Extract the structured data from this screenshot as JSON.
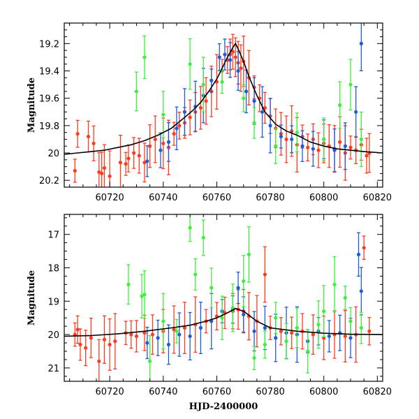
{
  "colors": {
    "red": "#ff3b1f",
    "blue": "#1e5bd6",
    "green": "#3cf03c",
    "fit": "#000000",
    "frame": "#000000"
  },
  "chart_data": [
    {
      "type": "scatter",
      "title": "",
      "xlabel": "",
      "ylabel": "Magnitude",
      "xlim": [
        60703,
        60822
      ],
      "ylim": [
        20.25,
        19.05
      ],
      "y_inverted": true,
      "x_ticks": [
        "60720",
        "60740",
        "60760",
        "60780",
        "60800",
        "60820"
      ],
      "y_ticks": [
        "19.2",
        "19.4",
        "19.6",
        "19.8",
        "20",
        "20.2"
      ],
      "grid": false,
      "series": [
        {
          "color": "red",
          "marker": "circle with error bar",
          "points": [
            [
              60707,
              20.13
            ],
            [
              60708,
              19.86
            ],
            [
              60712,
              19.88
            ],
            [
              60714,
              19.93
            ],
            [
              60716,
              20.14
            ],
            [
              60717,
              20.15
            ],
            [
              60718,
              20.11
            ],
            [
              60720,
              20.17
            ],
            [
              60724,
              20.07
            ],
            [
              60726,
              20.08
            ],
            [
              60727,
              20.04
            ],
            [
              60729,
              20.0
            ],
            [
              60731,
              20.02
            ],
            [
              60733,
              20.07
            ],
            [
              60735,
              19.95
            ],
            [
              60737,
              19.9
            ],
            [
              60740,
              19.93
            ],
            [
              60742,
              19.96
            ],
            [
              60744,
              19.86
            ],
            [
              60746,
              19.8
            ],
            [
              60748,
              19.78
            ],
            [
              60750,
              19.74
            ],
            [
              60752,
              19.7
            ],
            [
              60754,
              19.67
            ],
            [
              60756,
              19.62
            ],
            [
              60758,
              19.55
            ],
            [
              60760,
              19.48
            ],
            [
              60762,
              19.4
            ],
            [
              60764,
              19.32
            ],
            [
              60765,
              19.28
            ],
            [
              60766,
              19.26
            ],
            [
              60767,
              19.3
            ],
            [
              60768,
              19.34
            ],
            [
              60769,
              19.38
            ],
            [
              60770,
              19.33
            ],
            [
              60772,
              19.45
            ],
            [
              60774,
              19.52
            ],
            [
              60776,
              19.6
            ],
            [
              60778,
              19.67
            ],
            [
              60780,
              19.73
            ],
            [
              60782,
              19.82
            ],
            [
              60784,
              19.86
            ],
            [
              60786,
              19.9
            ],
            [
              60788,
              19.84
            ],
            [
              60790,
              19.94
            ],
            [
              60792,
              19.88
            ],
            [
              60794,
              19.96
            ],
            [
              60796,
              19.9
            ],
            [
              60798,
              19.98
            ],
            [
              60800,
              19.93
            ],
            [
              60802,
              19.95
            ],
            [
              60804,
              19.97
            ],
            [
              60806,
              19.92
            ],
            [
              60808,
              20.0
            ],
            [
              60810,
              19.96
            ],
            [
              60812,
              19.98
            ],
            [
              60814,
              19.94
            ],
            [
              60816,
              20.02
            ],
            [
              60817,
              20.0
            ]
          ]
        },
        {
          "color": "blue",
          "marker": "circle with error bar",
          "points": [
            [
              60734,
              20.06
            ],
            [
              60739,
              19.98
            ],
            [
              60742,
              19.92
            ],
            [
              60745,
              19.82
            ],
            [
              60748,
              19.7
            ],
            [
              60752,
              19.66
            ],
            [
              60755,
              19.58
            ],
            [
              60758,
              19.47
            ],
            [
              60761,
              19.3
            ],
            [
              60763,
              19.28
            ],
            [
              60765,
              19.32
            ],
            [
              60768,
              19.4
            ],
            [
              60771,
              19.55
            ],
            [
              60774,
              19.62
            ],
            [
              60777,
              19.7
            ],
            [
              60780,
              19.8
            ],
            [
              60784,
              19.88
            ],
            [
              60788,
              19.9
            ],
            [
              60792,
              19.95
            ],
            [
              60796,
              19.97
            ],
            [
              60800,
              19.9
            ],
            [
              60804,
              19.98
            ],
            [
              60808,
              19.95
            ],
            [
              60812,
              19.7
            ],
            [
              60814,
              19.2
            ]
          ]
        },
        {
          "color": "green",
          "marker": "circle with error bar",
          "points": [
            [
              60730,
              19.55
            ],
            [
              60733,
              19.3
            ],
            [
              60740,
              19.72
            ],
            [
              60750,
              19.35
            ],
            [
              60755,
              19.5
            ],
            [
              60762,
              19.48
            ],
            [
              60770,
              19.6
            ],
            [
              60774,
              19.78
            ],
            [
              60782,
              19.95
            ],
            [
              60790,
              19.85
            ],
            [
              60800,
              19.9
            ],
            [
              60806,
              19.65
            ],
            [
              60810,
              19.5
            ],
            [
              60814,
              19.9
            ]
          ]
        },
        {
          "color": "fit",
          "marker": "line",
          "x": [
            60703,
            60708,
            60713,
            60718,
            60723,
            60728,
            60733,
            60738,
            60743,
            60748,
            60751,
            60754,
            60757,
            60760,
            60762,
            60764,
            60766,
            60767,
            60768,
            60770,
            60772,
            60775,
            60778,
            60782,
            60786,
            60790,
            60795,
            60800,
            60805,
            60810,
            60815,
            60822
          ],
          "y": [
            20.01,
            20.0,
            19.99,
            19.98,
            19.96,
            19.94,
            19.91,
            19.87,
            19.82,
            19.74,
            19.69,
            19.63,
            19.55,
            19.46,
            19.38,
            19.3,
            19.23,
            19.2,
            19.24,
            19.33,
            19.44,
            19.58,
            19.7,
            19.79,
            19.84,
            19.87,
            19.92,
            19.95,
            19.97,
            19.98,
            19.99,
            20.0
          ]
        }
      ]
    },
    {
      "type": "scatter",
      "title": "",
      "xlabel": "HJD-2400000",
      "ylabel": "Magnitude",
      "xlim": [
        60703,
        60822
      ],
      "ylim": [
        21.4,
        16.4
      ],
      "y_inverted": true,
      "x_ticks": [
        "60720",
        "60740",
        "60760",
        "60780",
        "60800",
        "60820"
      ],
      "y_ticks": [
        "17",
        "18",
        "19",
        "20",
        "21"
      ],
      "grid": false,
      "series": [
        {
          "color": "red",
          "marker": "circle with error bar",
          "points": [
            [
              60707,
              20.0
            ],
            [
              60708,
              19.85
            ],
            [
              60709,
              20.3
            ],
            [
              60711,
              20.4
            ],
            [
              60713,
              20.1
            ],
            [
              60716,
              20.8
            ],
            [
              60718,
              20.15
            ],
            [
              60720,
              20.3
            ],
            [
              60722,
              20.2
            ],
            [
              60726,
              19.95
            ],
            [
              60728,
              20.0
            ],
            [
              60730,
              20.05
            ],
            [
              60733,
              19.95
            ],
            [
              60736,
              20.0
            ],
            [
              60740,
              19.9
            ],
            [
              60744,
              19.85
            ],
            [
              60748,
              19.8
            ],
            [
              60752,
              19.7
            ],
            [
              60756,
              19.6
            ],
            [
              60760,
              19.45
            ],
            [
              60763,
              19.35
            ],
            [
              60766,
              19.3
            ],
            [
              60768,
              19.25
            ],
            [
              60770,
              19.3
            ],
            [
              60772,
              19.45
            ],
            [
              60775,
              19.6
            ],
            [
              60778,
              18.2
            ],
            [
              60780,
              19.8
            ],
            [
              60784,
              19.9
            ],
            [
              60788,
              19.95
            ],
            [
              60792,
              19.9
            ],
            [
              60796,
              20.0
            ],
            [
              60800,
              20.1
            ],
            [
              60804,
              20.0
            ],
            [
              60808,
              20.05
            ],
            [
              60812,
              20.0
            ],
            [
              60815,
              17.4
            ],
            [
              60817,
              19.9
            ]
          ]
        },
        {
          "color": "blue",
          "marker": "circle with error bar",
          "points": [
            [
              60734,
              20.25
            ],
            [
              60738,
              20.1
            ],
            [
              60742,
              20.3
            ],
            [
              60746,
              20.0
            ],
            [
              60750,
              20.05
            ],
            [
              60754,
              19.8
            ],
            [
              60758,
              19.6
            ],
            [
              60762,
              19.3
            ],
            [
              60766,
              19.25
            ],
            [
              60768,
              18.6
            ],
            [
              60770,
              19.4
            ],
            [
              60774,
              19.9
            ],
            [
              60778,
              19.8
            ],
            [
              60782,
              20.1
            ],
            [
              60786,
              19.95
            ],
            [
              60790,
              20.0
            ],
            [
              60794,
              20.2
            ],
            [
              60798,
              19.9
            ],
            [
              60802,
              20.05
            ],
            [
              60806,
              19.95
            ],
            [
              60810,
              20.1
            ],
            [
              60813,
              17.6
            ],
            [
              60814,
              18.7
            ]
          ]
        },
        {
          "color": "green",
          "marker": "circle with error bar",
          "points": [
            [
              60727,
              18.5
            ],
            [
              60732,
              18.85
            ],
            [
              60733,
              18.8
            ],
            [
              60735,
              20.8
            ],
            [
              60740,
              19.6
            ],
            [
              60745,
              19.9
            ],
            [
              60750,
              16.8
            ],
            [
              60752,
              18.2
            ],
            [
              60755,
              17.1
            ],
            [
              60758,
              18.6
            ],
            [
              60762,
              19.5
            ],
            [
              60766,
              19.2
            ],
            [
              60770,
              18.4
            ],
            [
              60772,
              17.6
            ],
            [
              60774,
              20.7
            ],
            [
              60778,
              20.3
            ],
            [
              60782,
              19.5
            ],
            [
              60786,
              20.2
            ],
            [
              60790,
              19.8
            ],
            [
              60794,
              20.5
            ],
            [
              60798,
              19.7
            ],
            [
              60800,
              19.3
            ],
            [
              60804,
              18.5
            ],
            [
              60808,
              18.9
            ],
            [
              60810,
              19.6
            ],
            [
              60814,
              19.8
            ]
          ]
        },
        {
          "color": "fit",
          "marker": "line",
          "x": [
            60703,
            60713,
            60723,
            60733,
            60743,
            60750,
            60756,
            60760,
            60764,
            60767,
            60770,
            60775,
            60780,
            60790,
            60800,
            60810,
            60822
          ],
          "y": [
            20.05,
            20.03,
            19.98,
            19.9,
            19.8,
            19.72,
            19.6,
            19.5,
            19.35,
            19.22,
            19.3,
            19.6,
            19.8,
            19.9,
            19.96,
            19.99,
            20.0
          ]
        }
      ]
    }
  ]
}
